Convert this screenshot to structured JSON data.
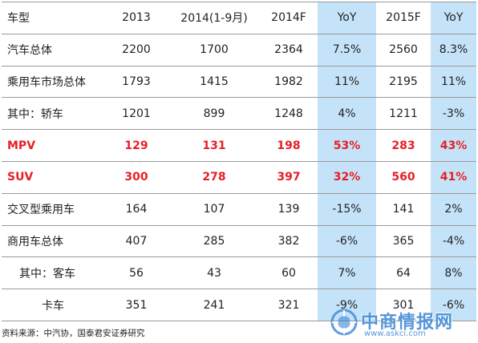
{
  "table": {
    "headers": [
      "车型",
      "2013",
      "2014(1-9月)",
      "2014F",
      "YoY",
      "2015F",
      "YoY"
    ],
    "rows": [
      [
        "汽车总体",
        "2200",
        "1700",
        "2364",
        "7.5%",
        "2560",
        "8.3%"
      ],
      [
        "乘用车市场总体",
        "1793",
        "1415",
        "1982",
        "11%",
        "2195",
        "11%"
      ],
      [
        "其中：轿车",
        "1201",
        "899",
        "1248",
        "4%",
        "1211",
        "-3%"
      ],
      [
        "MPV",
        "129",
        "131",
        "198",
        "53%",
        "283",
        "43%"
      ],
      [
        "SUV",
        "300",
        "278",
        "397",
        "32%",
        "560",
        "41%"
      ],
      [
        "交叉型乘用车",
        "164",
        "107",
        "139",
        "-15%",
        "141",
        "2%"
      ],
      [
        "商用车总体",
        "407",
        "285",
        "382",
        "-6%",
        "365",
        "-4%"
      ],
      [
        "其中：客车",
        "56",
        "43",
        "60",
        "7%",
        "64",
        "8%"
      ],
      [
        "卡车",
        "351",
        "241",
        "321",
        "-9%",
        "301",
        "-6%"
      ]
    ],
    "highlight_color": "#e61f26",
    "yoy_column_color": "#c5e3f8"
  },
  "source": "资料来源：中汽协，国泰君安证券研究",
  "watermark": {
    "title": "中商情报网",
    "url": "www.askci.com",
    "logo_icon": "askci-logo-icon",
    "color": "#3a86d4"
  }
}
